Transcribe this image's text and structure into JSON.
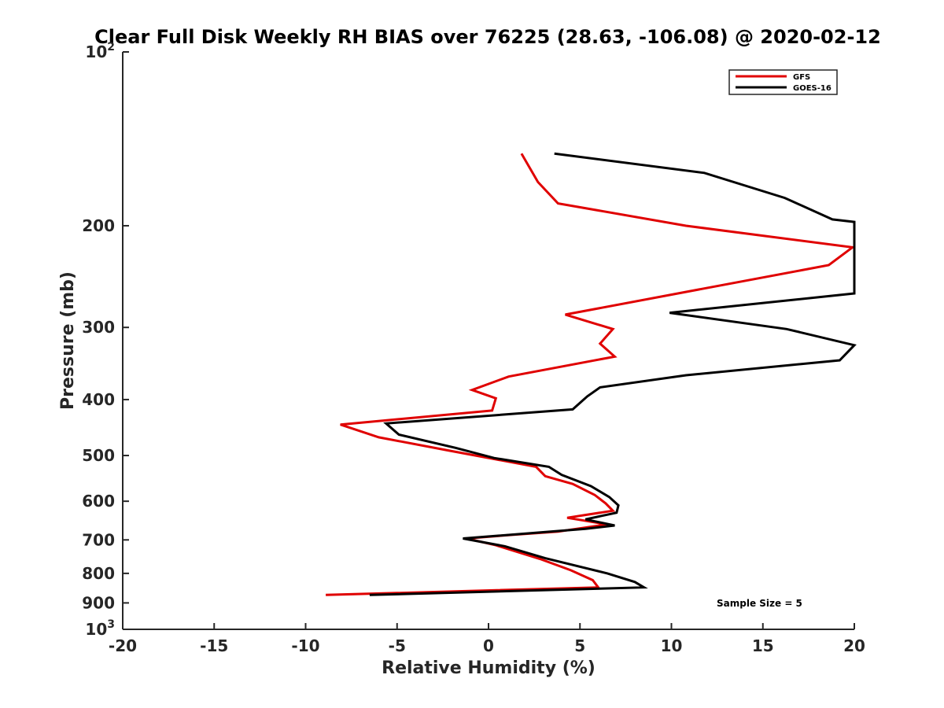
{
  "chart_data": {
    "type": "line",
    "title": "Clear Full Disk Weekly RH BIAS over 76225 (28.63, -106.08) @ 2020-02-12",
    "xlabel": "Relative Humidity (%)",
    "ylabel": "Pressure (mb)",
    "xlim": [
      -20,
      20
    ],
    "ylim": [
      100,
      1000
    ],
    "y_scale": "log",
    "y_reversed": true,
    "x_ticks": [
      "-20",
      "-15",
      "-10",
      "-5",
      "0",
      "5",
      "10",
      "15",
      "20"
    ],
    "y_ticks": [
      {
        "value": 100,
        "base": "10",
        "exp": "2"
      },
      {
        "value": 200,
        "label": "200"
      },
      {
        "value": 300,
        "label": "300"
      },
      {
        "value": 400,
        "label": "400"
      },
      {
        "value": 500,
        "label": "500"
      },
      {
        "value": 600,
        "label": "600"
      },
      {
        "value": 700,
        "label": "700"
      },
      {
        "value": 800,
        "label": "800"
      },
      {
        "value": 900,
        "label": "900"
      },
      {
        "value": 1000,
        "base": "10",
        "exp": "3"
      }
    ],
    "legend_position": "top-right",
    "annotation": "Sample Size = 5",
    "series": [
      {
        "name": "GFS",
        "color": "#e00000",
        "points": [
          {
            "rh": 1.8,
            "p": 150
          },
          {
            "rh": 2.7,
            "p": 168
          },
          {
            "rh": 3.8,
            "p": 183
          },
          {
            "rh": 10.8,
            "p": 200
          },
          {
            "rh": 19.9,
            "p": 218
          },
          {
            "rh": 18.6,
            "p": 234
          },
          {
            "rh": 4.2,
            "p": 285
          },
          {
            "rh": 6.8,
            "p": 302
          },
          {
            "rh": 6.1,
            "p": 320
          },
          {
            "rh": 6.9,
            "p": 337
          },
          {
            "rh": 1.1,
            "p": 365
          },
          {
            "rh": -0.9,
            "p": 385
          },
          {
            "rh": 0.4,
            "p": 398
          },
          {
            "rh": 0.2,
            "p": 418
          },
          {
            "rh": -8.1,
            "p": 442
          },
          {
            "rh": -6.0,
            "p": 465
          },
          {
            "rh": -2.2,
            "p": 490
          },
          {
            "rh": 2.6,
            "p": 523
          },
          {
            "rh": 3.1,
            "p": 543
          },
          {
            "rh": 4.6,
            "p": 560
          },
          {
            "rh": 5.8,
            "p": 585
          },
          {
            "rh": 6.4,
            "p": 605
          },
          {
            "rh": 6.8,
            "p": 623
          },
          {
            "rh": 4.3,
            "p": 641
          },
          {
            "rh": 6.5,
            "p": 658
          },
          {
            "rh": 3.8,
            "p": 677
          },
          {
            "rh": 1.3,
            "p": 686
          },
          {
            "rh": -1.2,
            "p": 696
          },
          {
            "rh": 0.4,
            "p": 715
          },
          {
            "rh": 2.8,
            "p": 755
          },
          {
            "rh": 4.5,
            "p": 790
          },
          {
            "rh": 5.7,
            "p": 822
          },
          {
            "rh": 6.0,
            "p": 846
          },
          {
            "rh": -8.9,
            "p": 872
          }
        ]
      },
      {
        "name": "GOES-16",
        "color": "#000000",
        "points": [
          {
            "rh": 3.6,
            "p": 150
          },
          {
            "rh": 11.8,
            "p": 162
          },
          {
            "rh": 16.2,
            "p": 179
          },
          {
            "rh": 18.8,
            "p": 195
          },
          {
            "rh": 20.0,
            "p": 197
          },
          {
            "rh": 20.0,
            "p": 262
          },
          {
            "rh": 9.9,
            "p": 283
          },
          {
            "rh": 16.3,
            "p": 302
          },
          {
            "rh": 20.0,
            "p": 322
          },
          {
            "rh": 19.2,
            "p": 342
          },
          {
            "rh": 10.8,
            "p": 363
          },
          {
            "rh": 6.1,
            "p": 381
          },
          {
            "rh": 5.4,
            "p": 395
          },
          {
            "rh": 4.6,
            "p": 416
          },
          {
            "rh": -5.6,
            "p": 440
          },
          {
            "rh": -4.9,
            "p": 460
          },
          {
            "rh": -1.8,
            "p": 485
          },
          {
            "rh": 0.3,
            "p": 505
          },
          {
            "rh": 3.3,
            "p": 523
          },
          {
            "rh": 4.0,
            "p": 540
          },
          {
            "rh": 5.6,
            "p": 565
          },
          {
            "rh": 6.6,
            "p": 590
          },
          {
            "rh": 7.1,
            "p": 610
          },
          {
            "rh": 7.0,
            "p": 628
          },
          {
            "rh": 5.3,
            "p": 645
          },
          {
            "rh": 6.9,
            "p": 661
          },
          {
            "rh": 5.3,
            "p": 670
          },
          {
            "rh": -1.4,
            "p": 696
          },
          {
            "rh": 0.9,
            "p": 718
          },
          {
            "rh": 3.1,
            "p": 753
          },
          {
            "rh": 6.5,
            "p": 800
          },
          {
            "rh": 8.0,
            "p": 828
          },
          {
            "rh": 8.5,
            "p": 846
          },
          {
            "rh": -6.5,
            "p": 872
          }
        ]
      }
    ]
  }
}
